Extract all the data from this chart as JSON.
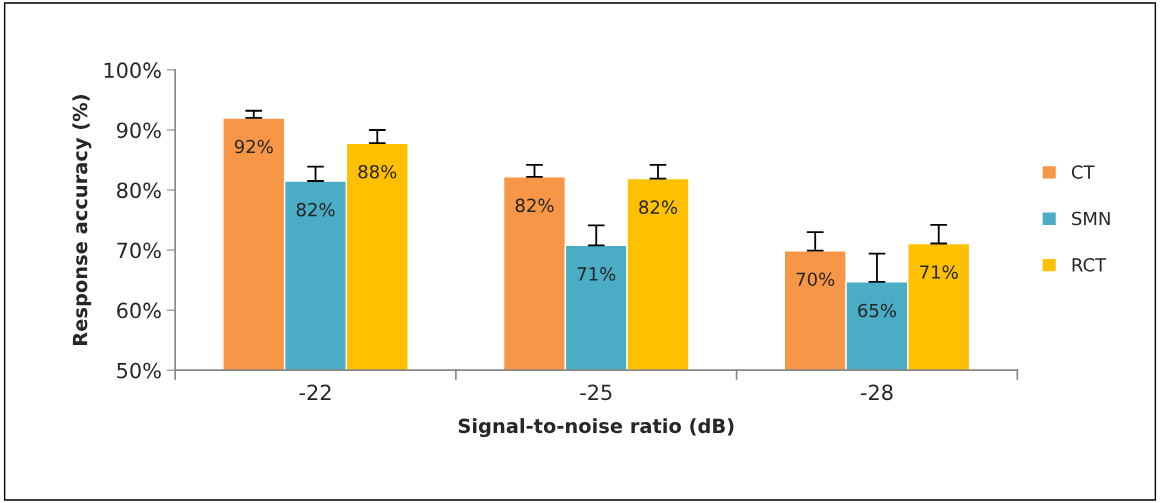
{
  "chart_data": {
    "type": "bar",
    "xlabel": "Signal-to-noise ratio (dB)",
    "ylabel": "Response accuracy (%)",
    "categories": [
      "-22",
      "-25",
      "-28"
    ],
    "series": [
      {
        "name": "CT",
        "color": "#f79646",
        "values": [
          92.0,
          82.2,
          69.9
        ],
        "errors": [
          [
            92.0,
            93.2
          ],
          [
            82.2,
            84.2
          ],
          [
            69.9,
            73.0
          ]
        ],
        "value_labels": [
          "92%",
          "82%",
          "70%"
        ]
      },
      {
        "name": "SMN",
        "color": "#4bacc6",
        "values": [
          81.5,
          70.8,
          64.7
        ],
        "errors": [
          [
            81.5,
            83.9
          ],
          [
            70.8,
            74.1
          ],
          [
            64.7,
            69.4
          ]
        ],
        "value_labels": [
          "82%",
          "71%",
          "65%"
        ]
      },
      {
        "name": "RCT",
        "color": "#ffc000",
        "values": [
          87.8,
          81.9,
          71.1
        ],
        "errors": [
          [
            87.8,
            90.0
          ],
          [
            81.9,
            84.2
          ],
          [
            71.1,
            74.2
          ]
        ],
        "value_labels": [
          "88%",
          "82%",
          "71%"
        ]
      }
    ],
    "ylim": [
      50,
      100
    ],
    "yticks": [
      {
        "value": 50,
        "label": "50%"
      },
      {
        "value": 60,
        "label": "60%"
      },
      {
        "value": 70,
        "label": "70%"
      },
      {
        "value": 80,
        "label": "80%"
      },
      {
        "value": 90,
        "label": "90%"
      },
      {
        "value": 100,
        "label": "100%"
      }
    ],
    "grid": false,
    "legend": "right"
  }
}
